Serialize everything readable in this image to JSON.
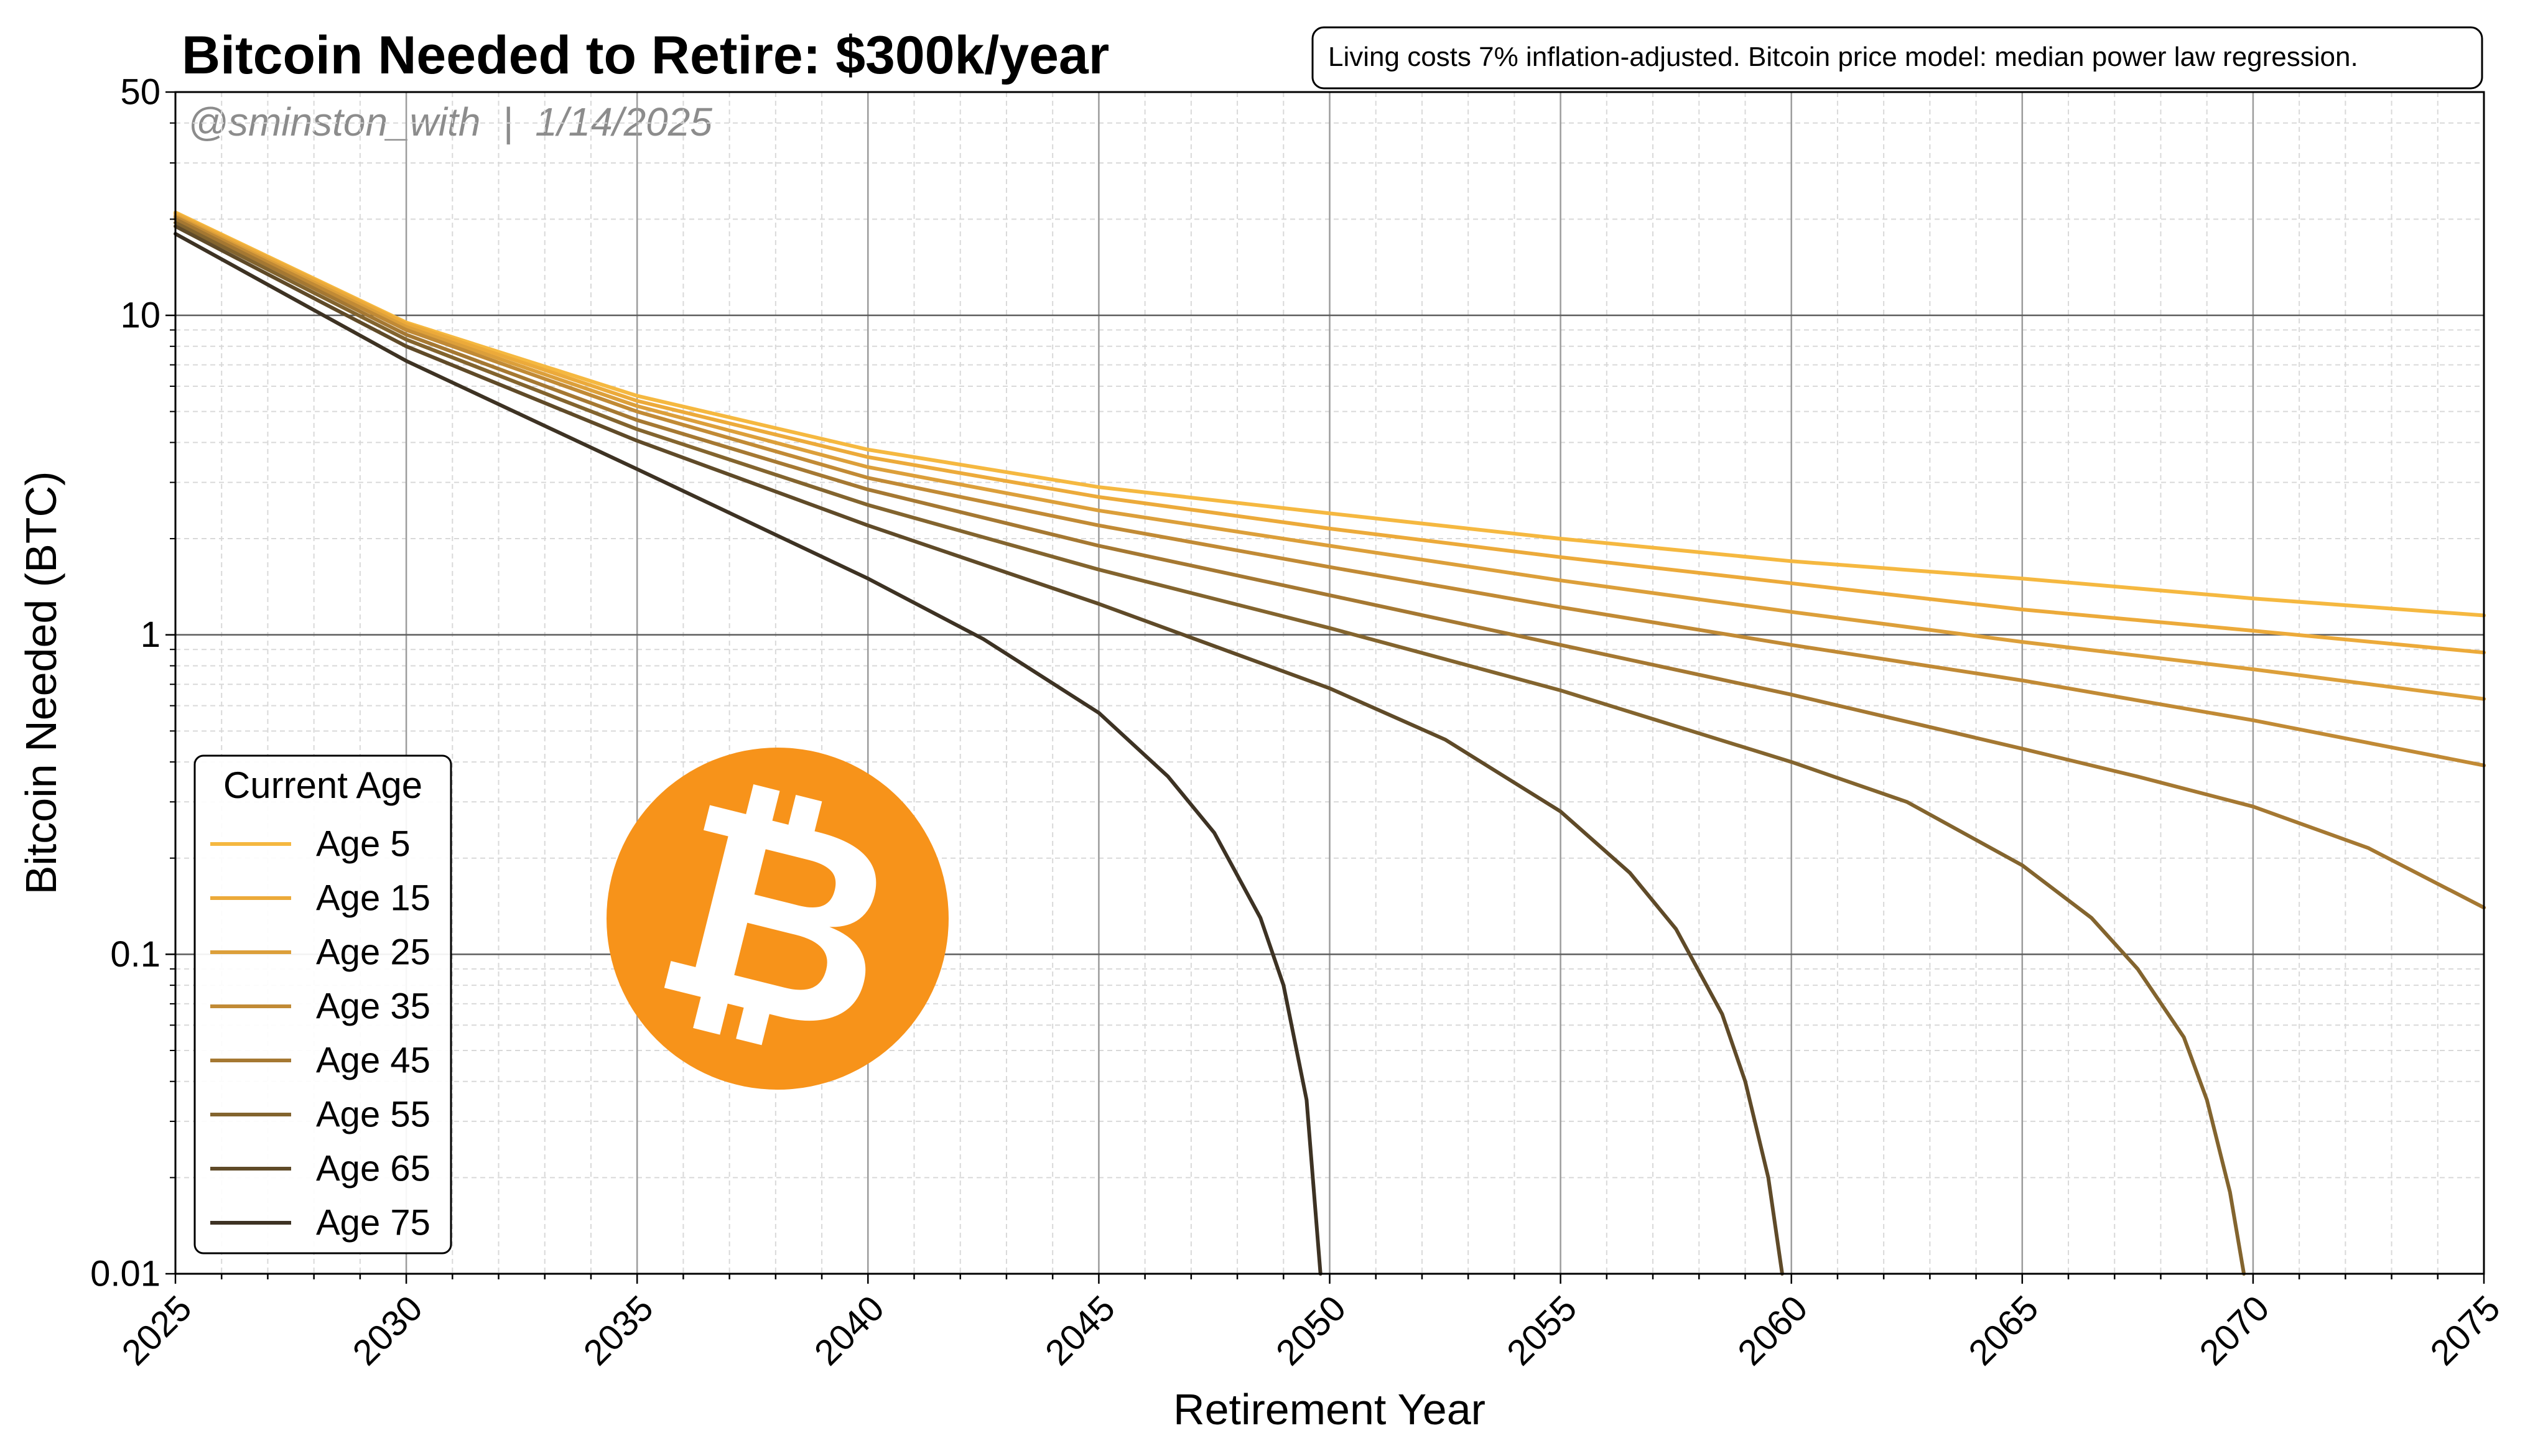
{
  "header": {
    "title": "Bitcoin Needed to Retire: $300k/year",
    "subtitle": "@sminston_with  |  1/14/2025",
    "note": "Living costs 7% inflation-adjusted. Bitcoin price model: median power law regression."
  },
  "logo": {
    "name": "bitcoin-logo",
    "glyph": "₿",
    "color": "#f7931a"
  },
  "chart_data": {
    "type": "line",
    "xlabel": "Retirement Year",
    "ylabel": "Bitcoin Needed (BTC)",
    "xlim": [
      2025,
      2075
    ],
    "ylim": [
      0.01,
      50
    ],
    "yscale": "log",
    "xticks": [
      2025,
      2030,
      2035,
      2040,
      2045,
      2050,
      2055,
      2060,
      2065,
      2070,
      2075
    ],
    "yticks": [
      0.01,
      0.1,
      1,
      10,
      50
    ],
    "ytick_labels": [
      "0.01",
      "0.1",
      "1",
      "10",
      "50"
    ],
    "grid": true,
    "legend": {
      "title": "Current Age",
      "position": "lower-left"
    },
    "series": [
      {
        "name": "Age 5",
        "color": "#f5b840",
        "x": [
          2025,
          2030,
          2035,
          2040,
          2045,
          2050,
          2055,
          2060,
          2065,
          2070,
          2075
        ],
        "y": [
          21.0,
          9.5,
          5.6,
          3.8,
          2.9,
          2.4,
          2.0,
          1.7,
          1.5,
          1.3,
          1.15
        ]
      },
      {
        "name": "Age 15",
        "color": "#ecaa3a",
        "x": [
          2025,
          2030,
          2035,
          2040,
          2045,
          2050,
          2055,
          2060,
          2065,
          2070,
          2075
        ],
        "y": [
          20.8,
          9.4,
          5.4,
          3.6,
          2.7,
          2.15,
          1.75,
          1.45,
          1.2,
          1.03,
          0.88
        ]
      },
      {
        "name": "Age 25",
        "color": "#dc9f3a",
        "x": [
          2025,
          2030,
          2035,
          2040,
          2045,
          2050,
          2055,
          2060,
          2065,
          2070,
          2075
        ],
        "y": [
          20.5,
          9.2,
          5.2,
          3.35,
          2.45,
          1.9,
          1.48,
          1.18,
          0.95,
          0.78,
          0.63
        ]
      },
      {
        "name": "Age 35",
        "color": "#c18a35",
        "x": [
          2025,
          2030,
          2035,
          2040,
          2045,
          2050,
          2055,
          2060,
          2065,
          2070,
          2075
        ],
        "y": [
          20.3,
          9.0,
          5.0,
          3.1,
          2.2,
          1.63,
          1.22,
          0.93,
          0.72,
          0.54,
          0.39
        ]
      },
      {
        "name": "Age 45",
        "color": "#a57832",
        "x": [
          2025,
          2030,
          2035,
          2040,
          2045,
          2050,
          2055,
          2060,
          2065,
          2067.5,
          2070,
          2072.5,
          2075
        ],
        "y": [
          20.0,
          8.7,
          4.7,
          2.85,
          1.9,
          1.33,
          0.93,
          0.65,
          0.44,
          0.36,
          0.29,
          0.215,
          0.14
        ]
      },
      {
        "name": "Age 55",
        "color": "#83642e",
        "x": [
          2025,
          2030,
          2035,
          2040,
          2045,
          2050,
          2055,
          2060,
          2062.5,
          2065,
          2066.5,
          2067.5,
          2068.5,
          2069,
          2069.5,
          2069.8
        ],
        "y": [
          19.5,
          8.4,
          4.4,
          2.55,
          1.6,
          1.05,
          0.67,
          0.4,
          0.3,
          0.19,
          0.13,
          0.09,
          0.055,
          0.035,
          0.018,
          0.01
        ]
      },
      {
        "name": "Age 65",
        "color": "#5f4a28",
        "x": [
          2025,
          2030,
          2035,
          2040,
          2045,
          2050,
          2052.5,
          2055,
          2056.5,
          2057.5,
          2058.5,
          2059,
          2059.5,
          2059.8
        ],
        "y": [
          19.0,
          8.0,
          4.05,
          2.2,
          1.25,
          0.68,
          0.47,
          0.28,
          0.18,
          0.12,
          0.065,
          0.04,
          0.02,
          0.01
        ]
      },
      {
        "name": "Age 75",
        "color": "#3d3223",
        "x": [
          2025,
          2030,
          2035,
          2040,
          2042.5,
          2045,
          2046.5,
          2047.5,
          2048.5,
          2049,
          2049.5,
          2049.8
        ],
        "y": [
          18.0,
          7.2,
          3.3,
          1.5,
          0.97,
          0.57,
          0.36,
          0.24,
          0.13,
          0.08,
          0.035,
          0.01
        ]
      }
    ]
  }
}
